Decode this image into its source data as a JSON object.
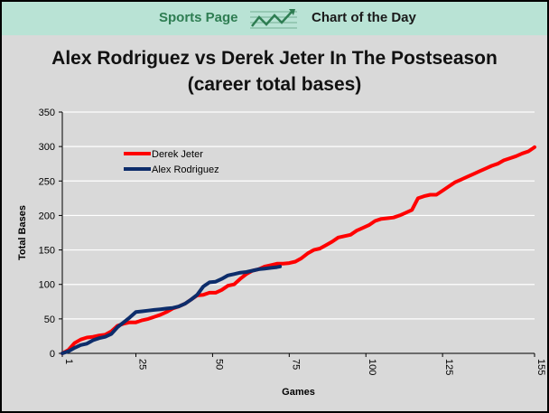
{
  "banner": {
    "left_text": "Sports Page",
    "right_text": "Chart of the Day",
    "icon": "trend-up-icon"
  },
  "chart_data": {
    "type": "line",
    "title_line1": "Alex Rodriguez vs Derek Jeter In The Postseason",
    "title_line2": "(career total bases)",
    "xlabel": "Games",
    "ylabel": "Total Bases",
    "xlim": [
      1,
      155
    ],
    "ylim": [
      0,
      350
    ],
    "xticks": [
      1,
      25,
      50,
      75,
      100,
      125,
      155
    ],
    "yticks": [
      0,
      50,
      100,
      150,
      200,
      250,
      300,
      350
    ],
    "legend_position": "upper-left",
    "series": [
      {
        "name": "Derek Jeter",
        "color": "#ff0000",
        "points": [
          [
            1,
            0
          ],
          [
            3,
            5
          ],
          [
            5,
            15
          ],
          [
            7,
            20
          ],
          [
            9,
            23
          ],
          [
            11,
            24
          ],
          [
            13,
            26
          ],
          [
            15,
            27
          ],
          [
            17,
            32
          ],
          [
            19,
            40
          ],
          [
            21,
            43
          ],
          [
            23,
            45
          ],
          [
            25,
            45
          ],
          [
            27,
            48
          ],
          [
            29,
            50
          ],
          [
            31,
            53
          ],
          [
            33,
            56
          ],
          [
            35,
            60
          ],
          [
            37,
            65
          ],
          [
            39,
            68
          ],
          [
            41,
            72
          ],
          [
            43,
            78
          ],
          [
            45,
            84
          ],
          [
            47,
            85
          ],
          [
            49,
            88
          ],
          [
            51,
            88
          ],
          [
            53,
            92
          ],
          [
            55,
            98
          ],
          [
            57,
            100
          ],
          [
            59,
            108
          ],
          [
            61,
            115
          ],
          [
            63,
            120
          ],
          [
            65,
            122
          ],
          [
            67,
            126
          ],
          [
            69,
            128
          ],
          [
            71,
            130
          ],
          [
            73,
            130
          ],
          [
            75,
            131
          ],
          [
            77,
            133
          ],
          [
            79,
            138
          ],
          [
            81,
            145
          ],
          [
            83,
            150
          ],
          [
            85,
            152
          ],
          [
            87,
            157
          ],
          [
            89,
            162
          ],
          [
            91,
            168
          ],
          [
            93,
            170
          ],
          [
            95,
            172
          ],
          [
            97,
            178
          ],
          [
            99,
            182
          ],
          [
            101,
            186
          ],
          [
            103,
            192
          ],
          [
            105,
            195
          ],
          [
            107,
            196
          ],
          [
            109,
            197
          ],
          [
            111,
            200
          ],
          [
            113,
            204
          ],
          [
            115,
            208
          ],
          [
            117,
            225
          ],
          [
            119,
            228
          ],
          [
            121,
            230
          ],
          [
            123,
            230
          ],
          [
            125,
            236
          ],
          [
            127,
            242
          ],
          [
            129,
            248
          ],
          [
            131,
            252
          ],
          [
            133,
            256
          ],
          [
            135,
            260
          ],
          [
            137,
            264
          ],
          [
            139,
            268
          ],
          [
            141,
            272
          ],
          [
            143,
            275
          ],
          [
            145,
            280
          ],
          [
            147,
            283
          ],
          [
            149,
            286
          ],
          [
            151,
            290
          ],
          [
            153,
            293
          ],
          [
            155,
            299
          ]
        ]
      },
      {
        "name": "Alex Rodriguez",
        "color": "#0d2d6b",
        "points": [
          [
            1,
            0
          ],
          [
            3,
            3
          ],
          [
            5,
            8
          ],
          [
            7,
            12
          ],
          [
            9,
            14
          ],
          [
            11,
            19
          ],
          [
            13,
            22
          ],
          [
            15,
            24
          ],
          [
            17,
            28
          ],
          [
            19,
            38
          ],
          [
            21,
            45
          ],
          [
            23,
            52
          ],
          [
            25,
            60
          ],
          [
            27,
            61
          ],
          [
            29,
            62
          ],
          [
            31,
            63
          ],
          [
            33,
            64
          ],
          [
            35,
            65
          ],
          [
            37,
            66
          ],
          [
            39,
            68
          ],
          [
            41,
            72
          ],
          [
            43,
            78
          ],
          [
            45,
            85
          ],
          [
            47,
            97
          ],
          [
            49,
            103
          ],
          [
            51,
            104
          ],
          [
            53,
            108
          ],
          [
            55,
            113
          ],
          [
            57,
            115
          ],
          [
            59,
            117
          ],
          [
            61,
            118
          ],
          [
            63,
            120
          ],
          [
            65,
            122
          ],
          [
            67,
            123
          ],
          [
            69,
            124
          ],
          [
            71,
            125
          ],
          [
            72,
            126
          ]
        ]
      }
    ]
  }
}
